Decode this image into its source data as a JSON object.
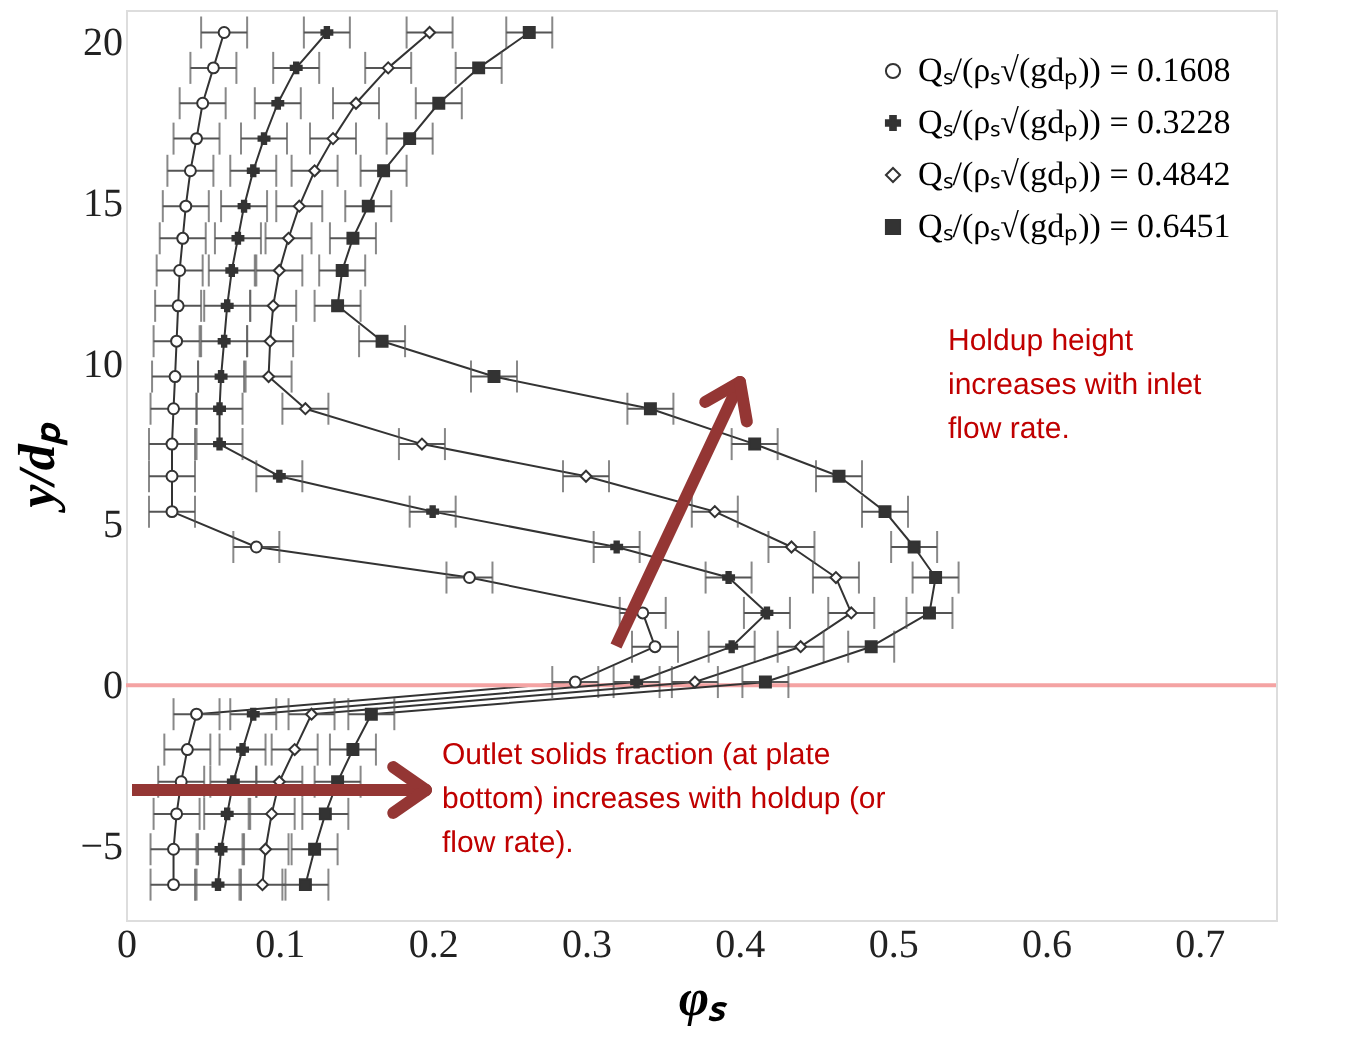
{
  "chart_data": {
    "type": "line",
    "xlabel": "φₛ",
    "ylabel": "y/dₚ",
    "xlim": [
      0,
      0.75
    ],
    "ylim": [
      -7.3,
      21
    ],
    "xticks": [
      0,
      0.1,
      0.2,
      0.3,
      0.4,
      0.5,
      0.6,
      0.7
    ],
    "yticks": [
      -5,
      0,
      5,
      10,
      15,
      20
    ],
    "grid": false,
    "legend": "top right",
    "line_style": "solid",
    "series": [
      {
        "name": "Qₛ/(ρₛ√(gdₚ)) = 0.1608",
        "color": "#333333",
        "marker": "circle",
        "x": [
          0.064,
          0.057,
          0.05,
          0.046,
          0.042,
          0.039,
          0.037,
          0.035,
          0.034,
          0.033,
          0.032,
          0.031,
          0.03,
          0.03,
          0.03,
          0.085,
          0.224,
          0.337,
          0.345,
          0.293,
          0.046,
          0.04,
          0.036,
          0.033,
          0.031,
          0.031
        ],
        "values": [
          20.3,
          19.2,
          18.1,
          17.0,
          16.0,
          14.9,
          13.9,
          12.9,
          11.8,
          10.7,
          9.6,
          8.6,
          7.5,
          6.5,
          5.4,
          4.3,
          3.35,
          2.25,
          1.2,
          0.1,
          -0.9,
          -2,
          -3,
          -4,
          -5.1,
          -6.2
        ],
        "xerrors": [
          0.015,
          0.015,
          0.015,
          0.015,
          0.015,
          0.015,
          0.015,
          0.015,
          0.015,
          0.015,
          0.015,
          0.015,
          0.015,
          0.015,
          0.015,
          0.015,
          0.015,
          0.015,
          0.015,
          0.015,
          0.015,
          0.015,
          0.015,
          0.015,
          0.015,
          0.015
        ]
      },
      {
        "name": "Qₛ/(ρₛ√(gdₚ)) = 0.3228",
        "color": "#333333",
        "marker": "cross",
        "x": [
          0.131,
          0.111,
          0.099,
          0.09,
          0.083,
          0.077,
          0.073,
          0.069,
          0.066,
          0.064,
          0.062,
          0.061,
          0.061,
          0.1,
          0.2,
          0.32,
          0.393,
          0.418,
          0.395,
          0.333,
          0.083,
          0.076,
          0.07,
          0.066,
          0.062,
          0.06
        ],
        "values": [
          20.3,
          19.2,
          18.1,
          17.0,
          16.0,
          14.9,
          13.9,
          12.9,
          11.8,
          10.7,
          9.6,
          8.6,
          7.5,
          6.5,
          5.4,
          4.3,
          3.35,
          2.25,
          1.2,
          0.1,
          -0.9,
          -2,
          -3,
          -4,
          -5.1,
          -6.2
        ],
        "xerrors": [
          0.015,
          0.015,
          0.015,
          0.015,
          0.015,
          0.015,
          0.015,
          0.015,
          0.015,
          0.015,
          0.015,
          0.015,
          0.015,
          0.015,
          0.015,
          0.015,
          0.015,
          0.015,
          0.015,
          0.015,
          0.015,
          0.015,
          0.015,
          0.015,
          0.015,
          0.015
        ]
      },
      {
        "name": "Qₛ/(ρₛ√(gdₚ)) = 0.4842",
        "color": "#333333",
        "marker": "diamond",
        "x": [
          0.198,
          0.171,
          0.15,
          0.135,
          0.123,
          0.113,
          0.106,
          0.1,
          0.096,
          0.094,
          0.093,
          0.117,
          0.193,
          0.3,
          0.384,
          0.434,
          0.463,
          0.473,
          0.44,
          0.371,
          0.121,
          0.11,
          0.1,
          0.095,
          0.091,
          0.089
        ],
        "values": [
          20.3,
          19.2,
          18.1,
          17.0,
          16.0,
          14.9,
          13.9,
          12.9,
          11.8,
          10.7,
          9.6,
          8.6,
          7.5,
          6.5,
          5.4,
          4.3,
          3.35,
          2.25,
          1.2,
          0.1,
          -0.9,
          -2,
          -3,
          -4,
          -5.1,
          -6.2
        ],
        "xerrors": [
          0.015,
          0.015,
          0.015,
          0.015,
          0.015,
          0.015,
          0.015,
          0.015,
          0.015,
          0.015,
          0.015,
          0.015,
          0.015,
          0.015,
          0.015,
          0.015,
          0.015,
          0.015,
          0.015,
          0.015,
          0.015,
          0.015,
          0.015,
          0.015,
          0.015,
          0.015
        ]
      },
      {
        "name": "Qₛ/(ρₛ√(gdₚ)) = 0.6451",
        "color": "#333333",
        "marker": "square",
        "x": [
          0.263,
          0.23,
          0.204,
          0.185,
          0.168,
          0.158,
          0.148,
          0.141,
          0.138,
          0.167,
          0.24,
          0.342,
          0.41,
          0.465,
          0.495,
          0.514,
          0.528,
          0.524,
          0.486,
          0.417,
          0.16,
          0.148,
          0.138,
          0.13,
          0.123,
          0.117
        ],
        "values": [
          20.3,
          19.2,
          18.1,
          17.0,
          16.0,
          14.9,
          13.9,
          12.9,
          11.8,
          10.7,
          9.6,
          8.6,
          7.5,
          6.5,
          5.4,
          4.3,
          3.35,
          2.25,
          1.2,
          0.1,
          -0.9,
          -2,
          -3,
          -4,
          -5.1,
          -6.2
        ],
        "xerrors": [
          0.015,
          0.015,
          0.015,
          0.015,
          0.015,
          0.015,
          0.015,
          0.015,
          0.015,
          0.015,
          0.015,
          0.015,
          0.015,
          0.015,
          0.015,
          0.015,
          0.015,
          0.015,
          0.015,
          0.015,
          0.015,
          0.015,
          0.015,
          0.015,
          0.015,
          0.015
        ]
      }
    ],
    "ref_lines": [
      {
        "axis": "y",
        "value": 0,
        "color": "#f4a3a3",
        "line_style": "solid"
      }
    ],
    "annotations": [
      "Holdup height\nincreases with inlet\nflow rate.",
      "Outlet solids fraction (at plate\nbottom) increases with holdup (or\nflow rate)."
    ]
  }
}
